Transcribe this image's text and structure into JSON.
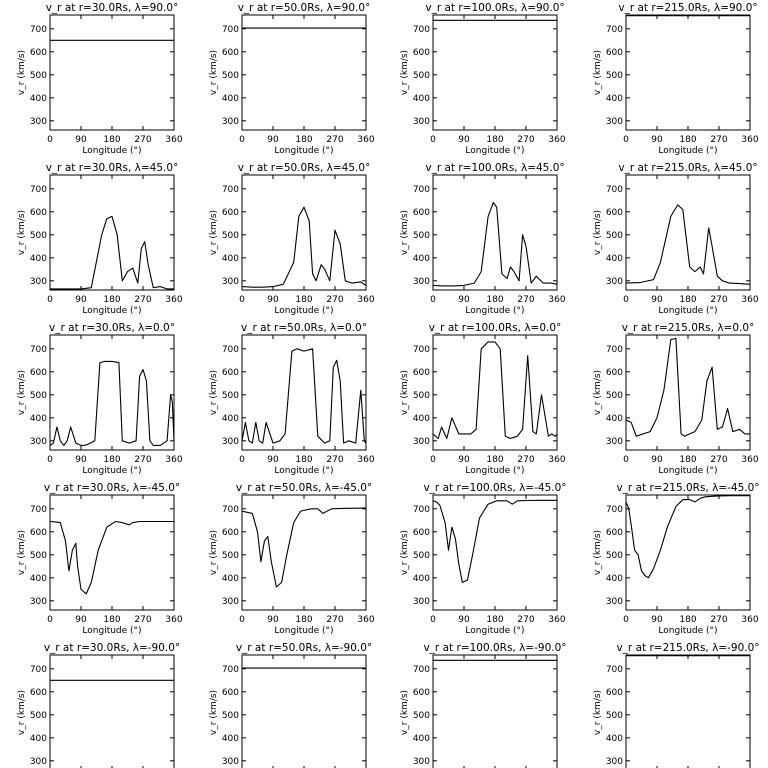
{
  "chart_data": {
    "type": "line",
    "layout": "5x4 grid",
    "xlabel": "Longitude (°)",
    "ylabel": "v_r (km/s)",
    "xlim": [
      0,
      360
    ],
    "xticks": [
      0,
      90,
      180,
      270,
      360
    ],
    "ylim": [
      260,
      760
    ],
    "yticks": [
      300,
      400,
      500,
      600,
      700
    ],
    "grid": false,
    "legend": "none",
    "line_color": "#000000",
    "panels": [
      {
        "title": "v_r at r=30.0Rs, λ=90.0°",
        "x": [
          0,
          360
        ],
        "y": [
          650,
          650
        ]
      },
      {
        "title": "v_r at r=50.0Rs, λ=90.0°",
        "x": [
          0,
          360
        ],
        "y": [
          703,
          703
        ]
      },
      {
        "title": "v_r at r=100.0Rs, λ=90.0°",
        "x": [
          0,
          360
        ],
        "y": [
          737,
          737
        ]
      },
      {
        "title": "v_r at r=215.0Rs, λ=90.0°",
        "x": [
          0,
          360
        ],
        "y": [
          757,
          757
        ]
      },
      {
        "title": "v_r at r=30.0Rs, λ=45.0°",
        "x": [
          0,
          30,
          60,
          90,
          120,
          150,
          165,
          180,
          195,
          210,
          225,
          240,
          255,
          265,
          275,
          285,
          300,
          320,
          340,
          360
        ],
        "y": [
          265,
          265,
          265,
          265,
          270,
          500,
          570,
          580,
          500,
          300,
          340,
          355,
          290,
          440,
          470,
          370,
          270,
          275,
          265,
          265
        ]
      },
      {
        "title": "v_r at r=50.0Rs, λ=45.0°",
        "x": [
          0,
          30,
          60,
          90,
          120,
          150,
          165,
          180,
          195,
          205,
          215,
          230,
          240,
          255,
          270,
          285,
          300,
          320,
          345,
          360
        ],
        "y": [
          275,
          272,
          272,
          275,
          285,
          380,
          580,
          620,
          560,
          330,
          300,
          370,
          350,
          300,
          520,
          460,
          300,
          290,
          295,
          280
        ]
      },
      {
        "title": "v_r at r=100.0Rs, λ=45.0°",
        "x": [
          0,
          30,
          60,
          90,
          120,
          140,
          160,
          175,
          185,
          200,
          215,
          225,
          235,
          250,
          260,
          270,
          285,
          300,
          320,
          345,
          360
        ],
        "y": [
          280,
          278,
          278,
          280,
          290,
          340,
          580,
          640,
          620,
          330,
          310,
          360,
          340,
          300,
          500,
          450,
          290,
          320,
          290,
          290,
          285
        ]
      },
      {
        "title": "v_r at r=215.0Rs, λ=45.0°",
        "x": [
          0,
          40,
          80,
          100,
          130,
          150,
          165,
          185,
          200,
          215,
          225,
          240,
          250,
          265,
          280,
          300,
          330,
          360
        ],
        "y": [
          290,
          292,
          305,
          380,
          580,
          630,
          610,
          360,
          340,
          360,
          330,
          530,
          450,
          320,
          300,
          290,
          288,
          285
        ]
      },
      {
        "title": "v_r at r=30.0Rs, λ=0.0°",
        "x": [
          0,
          10,
          20,
          30,
          40,
          50,
          60,
          75,
          90,
          100,
          110,
          130,
          145,
          160,
          180,
          200,
          210,
          230,
          250,
          260,
          270,
          280,
          290,
          300,
          320,
          340,
          350,
          355,
          360
        ],
        "y": [
          280,
          290,
          360,
          300,
          280,
          300,
          360,
          290,
          280,
          280,
          285,
          300,
          640,
          645,
          645,
          640,
          300,
          290,
          300,
          580,
          610,
          560,
          300,
          280,
          280,
          300,
          500,
          470,
          300
        ]
      },
      {
        "title": "v_r at r=50.0Rs, λ=0.0°",
        "x": [
          0,
          10,
          20,
          30,
          40,
          50,
          60,
          70,
          90,
          110,
          125,
          145,
          160,
          180,
          205,
          220,
          240,
          255,
          265,
          275,
          285,
          295,
          310,
          330,
          345,
          355,
          360
        ],
        "y": [
          300,
          380,
          300,
          290,
          380,
          300,
          290,
          380,
          290,
          300,
          330,
          690,
          700,
          690,
          700,
          320,
          290,
          300,
          620,
          650,
          560,
          290,
          300,
          290,
          520,
          300,
          290
        ]
      },
      {
        "title": "v_r at r=100.0Rs, λ=0.0°",
        "x": [
          0,
          15,
          25,
          40,
          55,
          75,
          95,
          110,
          125,
          140,
          160,
          180,
          195,
          210,
          225,
          245,
          260,
          275,
          290,
          300,
          315,
          335,
          345,
          355,
          360
        ],
        "y": [
          330,
          310,
          360,
          310,
          400,
          330,
          330,
          330,
          350,
          700,
          730,
          730,
          700,
          320,
          310,
          320,
          350,
          670,
          340,
          330,
          500,
          320,
          330,
          320,
          330
        ]
      },
      {
        "title": "v_r at r=215.0Rs, λ=0.0°",
        "x": [
          0,
          15,
          30,
          50,
          70,
          90,
          110,
          130,
          145,
          160,
          170,
          185,
          200,
          220,
          235,
          250,
          265,
          280,
          295,
          310,
          330,
          345,
          360
        ],
        "y": [
          390,
          380,
          320,
          330,
          340,
          400,
          520,
          740,
          745,
          330,
          320,
          330,
          340,
          390,
          560,
          620,
          350,
          360,
          440,
          340,
          350,
          330,
          330
        ]
      },
      {
        "title": "v_r at r=30.0Rs, λ=-45.0°",
        "x": [
          0,
          15,
          30,
          45,
          55,
          65,
          75,
          80,
          90,
          105,
          120,
          140,
          165,
          190,
          210,
          230,
          240,
          260,
          300,
          360
        ],
        "y": [
          645,
          643,
          640,
          560,
          430,
          520,
          550,
          450,
          350,
          330,
          380,
          520,
          620,
          645,
          640,
          630,
          640,
          645,
          645,
          645
        ]
      },
      {
        "title": "v_r at r=50.0Rs, λ=-45.0°",
        "x": [
          0,
          15,
          30,
          45,
          55,
          65,
          75,
          85,
          100,
          115,
          130,
          150,
          170,
          200,
          220,
          235,
          260,
          300,
          360
        ],
        "y": [
          690,
          685,
          680,
          600,
          470,
          560,
          580,
          470,
          360,
          380,
          500,
          640,
          690,
          700,
          700,
          680,
          700,
          702,
          703
        ]
      },
      {
        "title": "v_r at r=100.0Rs, λ=-45.0°",
        "x": [
          0,
          10,
          20,
          35,
          45,
          55,
          65,
          75,
          85,
          100,
          115,
          135,
          160,
          185,
          215,
          230,
          245,
          270,
          310,
          360
        ],
        "y": [
          735,
          730,
          715,
          640,
          520,
          620,
          570,
          460,
          380,
          390,
          500,
          660,
          720,
          735,
          735,
          720,
          735,
          736,
          737,
          737
        ]
      },
      {
        "title": "v_r at r=215.0Rs, λ=-45.0°",
        "x": [
          0,
          8,
          16,
          25,
          35,
          45,
          55,
          65,
          80,
          100,
          120,
          145,
          165,
          185,
          200,
          215,
          230,
          260,
          300,
          360
        ],
        "y": [
          730,
          700,
          620,
          520,
          500,
          430,
          410,
          400,
          440,
          520,
          620,
          710,
          740,
          740,
          730,
          745,
          752,
          755,
          757,
          757
        ]
      },
      {
        "title": "v_r at r=30.0Rs, λ=-90.0°",
        "x": [
          0,
          360
        ],
        "y": [
          650,
          650
        ]
      },
      {
        "title": "v_r at r=50.0Rs, λ=-90.0°",
        "x": [
          0,
          360
        ],
        "y": [
          703,
          703
        ]
      },
      {
        "title": "v_r at r=100.0Rs, λ=-90.0°",
        "x": [
          0,
          360
        ],
        "y": [
          737,
          737
        ]
      },
      {
        "title": "v_r at r=215.0Rs, λ=-90.0°",
        "x": [
          0,
          360
        ],
        "y": [
          757,
          757
        ]
      }
    ]
  }
}
